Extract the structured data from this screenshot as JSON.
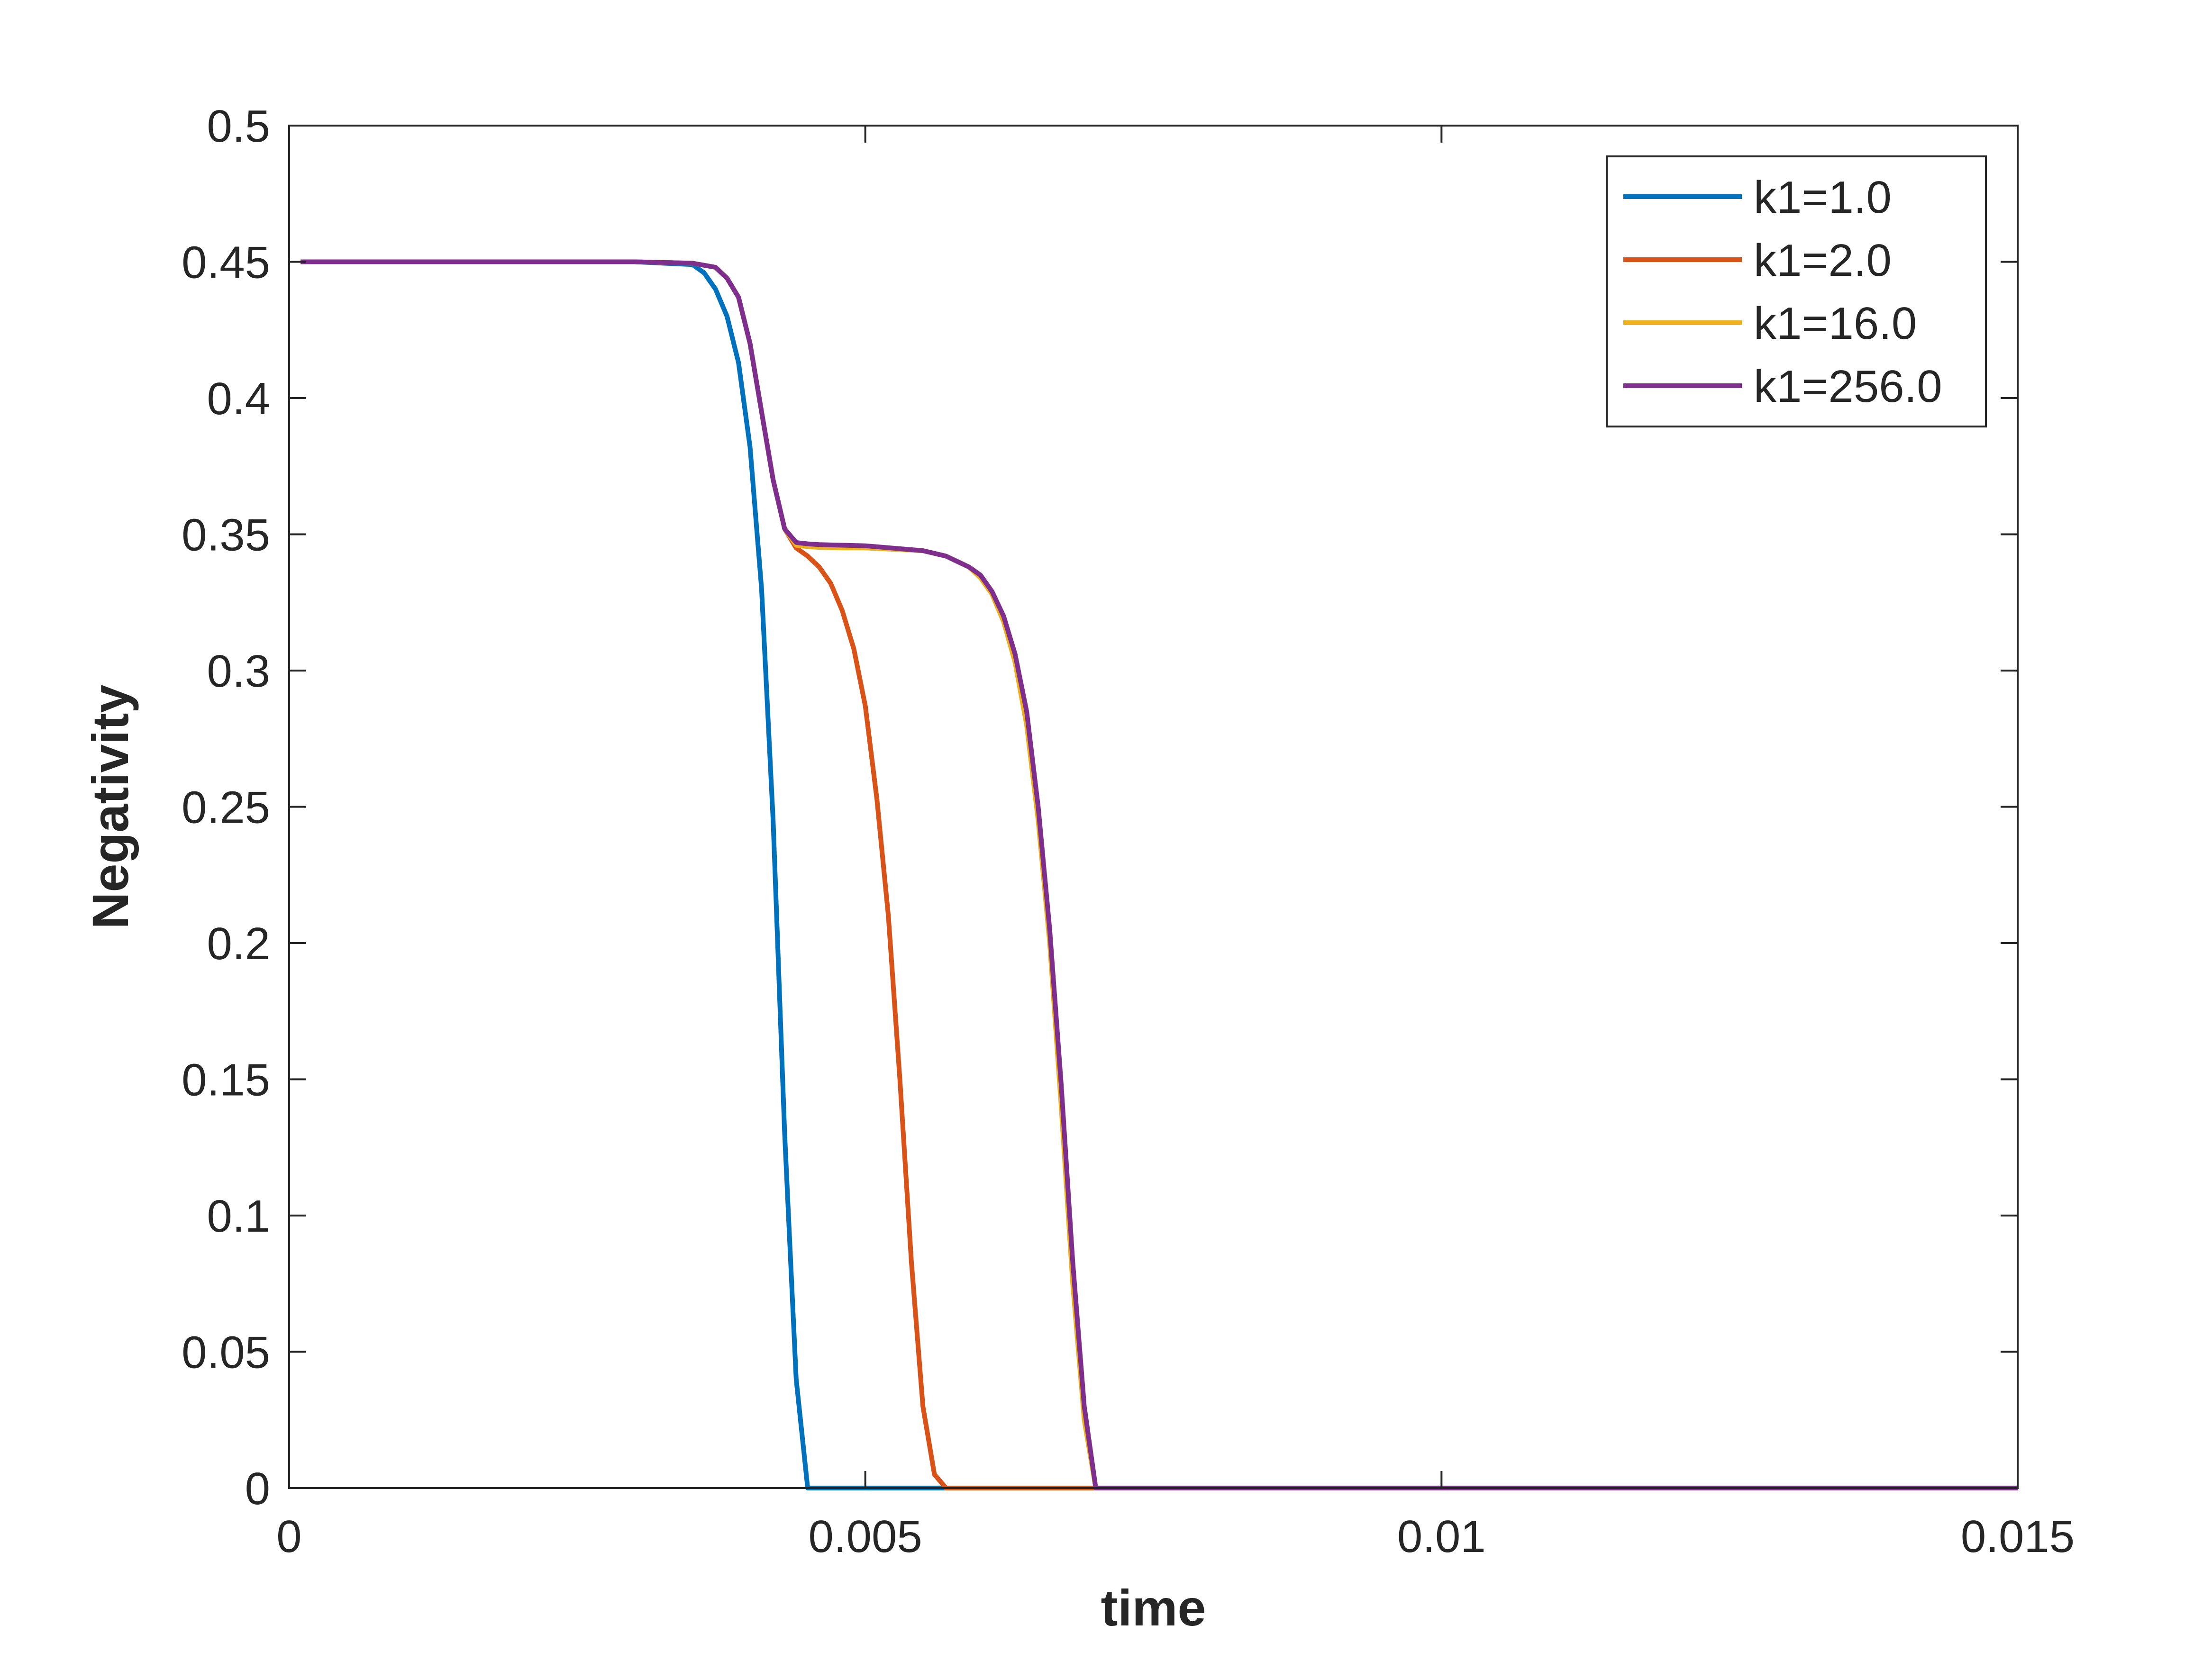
{
  "chart_data": {
    "type": "line",
    "title": "",
    "xlabel": "time",
    "ylabel": "Negativity",
    "xlim": [
      0,
      0.015
    ],
    "ylim": [
      0,
      0.5
    ],
    "xticks": [
      0,
      0.005,
      0.01,
      0.015
    ],
    "xtick_labels": [
      "0",
      "0.005",
      "0.01",
      "0.015"
    ],
    "yticks": [
      0,
      0.05,
      0.1,
      0.15,
      0.2,
      0.25,
      0.3,
      0.35,
      0.4,
      0.45,
      0.5
    ],
    "ytick_labels": [
      "0",
      "0.05",
      "0.1",
      "0.15",
      "0.2",
      "0.25",
      "0.3",
      "0.35",
      "0.4",
      "0.45",
      "0.5"
    ],
    "grid": false,
    "legend_position": "top-right",
    "series": [
      {
        "name": "k1=1.0",
        "color": "#0072BD",
        "x": [
          0.0001,
          0.003,
          0.0035,
          0.0036,
          0.0037,
          0.0038,
          0.0039,
          0.004,
          0.0041,
          0.0042,
          0.0043,
          0.0044,
          0.0045,
          0.015
        ],
        "y": [
          0.45,
          0.45,
          0.449,
          0.446,
          0.44,
          0.43,
          0.413,
          0.382,
          0.33,
          0.245,
          0.13,
          0.04,
          0,
          0
        ]
      },
      {
        "name": "k1=2.0",
        "color": "#D95319",
        "x": [
          0.0001,
          0.003,
          0.0035,
          0.0037,
          0.0038,
          0.0039,
          0.004,
          0.0041,
          0.0042,
          0.0043,
          0.0044,
          0.0045,
          0.0046,
          0.0047,
          0.0048,
          0.0049,
          0.005,
          0.0051,
          0.0052,
          0.0053,
          0.0054,
          0.0055,
          0.0056,
          0.0057,
          0.015
        ],
        "y": [
          0.45,
          0.45,
          0.4495,
          0.448,
          0.444,
          0.437,
          0.42,
          0.395,
          0.37,
          0.352,
          0.345,
          0.342,
          0.338,
          0.332,
          0.322,
          0.308,
          0.287,
          0.253,
          0.21,
          0.15,
          0.083,
          0.03,
          0.005,
          0,
          0
        ]
      },
      {
        "name": "k1=16.0",
        "color": "#EDB120",
        "x": [
          0.0001,
          0.003,
          0.0035,
          0.0037,
          0.0038,
          0.0039,
          0.004,
          0.0041,
          0.0042,
          0.0043,
          0.0044,
          0.0045,
          0.0046,
          0.0048,
          0.005,
          0.0055,
          0.0057,
          0.0059,
          0.006,
          0.0061,
          0.0062,
          0.0063,
          0.0064,
          0.0065,
          0.0066,
          0.0067,
          0.0068,
          0.0069,
          0.007,
          0.015
        ],
        "y": [
          0.45,
          0.45,
          0.4495,
          0.448,
          0.444,
          0.437,
          0.42,
          0.395,
          0.37,
          0.352,
          0.346,
          0.3455,
          0.3452,
          0.345,
          0.345,
          0.344,
          0.342,
          0.338,
          0.334,
          0.328,
          0.318,
          0.303,
          0.28,
          0.245,
          0.2,
          0.14,
          0.075,
          0.025,
          0,
          0
        ]
      },
      {
        "name": "k1=256.0",
        "color": "#7E2F8E",
        "x": [
          0.0001,
          0.003,
          0.0035,
          0.0037,
          0.0038,
          0.0039,
          0.004,
          0.0041,
          0.0042,
          0.0043,
          0.0044,
          0.0045,
          0.0046,
          0.0048,
          0.005,
          0.0055,
          0.0057,
          0.0059,
          0.006,
          0.0061,
          0.0062,
          0.0063,
          0.0064,
          0.0065,
          0.0066,
          0.0067,
          0.0068,
          0.0069,
          0.007,
          0.015
        ],
        "y": [
          0.45,
          0.45,
          0.4495,
          0.448,
          0.444,
          0.437,
          0.42,
          0.395,
          0.37,
          0.352,
          0.347,
          0.3465,
          0.3462,
          0.346,
          0.3458,
          0.344,
          0.342,
          0.338,
          0.335,
          0.329,
          0.32,
          0.306,
          0.285,
          0.25,
          0.205,
          0.148,
          0.083,
          0.03,
          0,
          0
        ]
      }
    ]
  }
}
